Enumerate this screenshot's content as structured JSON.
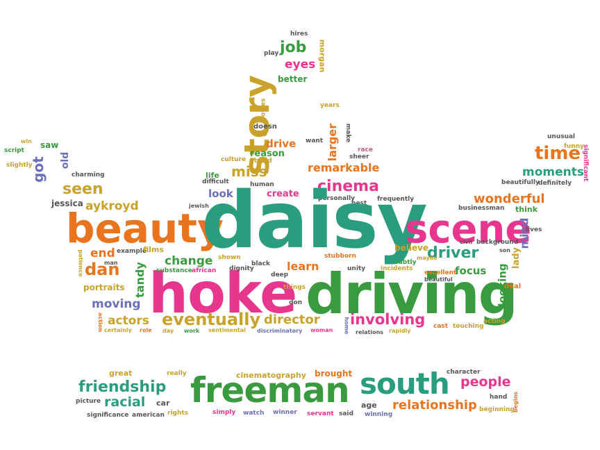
{
  "words": {
    "daisy": "daisy",
    "hoke": "hoke",
    "driving": "driving",
    "freeman": "freeman",
    "south": "south",
    "beauty": "beauty",
    "scene": "scene",
    "story": "story",
    "friendship": "friendship",
    "eventually": "eventually",
    "involving": "involving",
    "driver": "driver",
    "time": "time",
    "cinema": "cinema",
    "miss": "miss",
    "remarkable": "remarkable",
    "seen": "seen",
    "aykroyd": "aykroyd",
    "dan": "dan",
    "tandy": "tandy",
    "job": "job",
    "eyes": "eyes",
    "better": "better",
    "moments": "moments",
    "wonderful": "wonderful",
    "got": "got",
    "saw": "saw",
    "old": "old",
    "people": "people",
    "racial": "racial",
    "relationship": "relationship",
    "director": "director",
    "actors": "actors",
    "moving": "moving",
    "change": "change",
    "learn": "learn",
    "look": "look",
    "create": "create",
    "drive": "drive",
    "reason": "reason",
    "larger": "larger",
    "looking": "looking",
    "lady": "lady",
    "mind": "mind",
    "focus": "focus",
    "believe": "believe",
    "end": "end",
    "portraits": "portraits",
    "doesn": "doesn",
    "life": "life",
    "films": "films",
    "think": "think",
    "jessica": "jessica",
    "charming": "charming",
    "script": "script",
    "slightly": "slightly",
    "win": "win",
    "hires": "hires",
    "play": "play",
    "morgan": "morgan",
    "years": "years",
    "make": "make",
    "want": "want",
    "race": "race",
    "sheer": "sheer",
    "movies": "movies",
    "way": "way",
    "culture": "culture",
    "build": "build",
    "difficult": "difficult",
    "human": "human",
    "personally": "personally",
    "best": "best",
    "frequently": "frequently",
    "jewish": "jewish",
    "unusual": "unusual",
    "funny": "funny",
    "significant": "significant",
    "beautifully": "beautifully",
    "definitely": "definitely",
    "businessman": "businessman",
    "lives": "lives",
    "civil": "civil",
    "background": "background",
    "son": "son",
    "excellent": "excellent",
    "beautiful": "beautiful",
    "maybe": "maybe",
    "deal": "deal",
    "acting": "acting",
    "touching": "touching",
    "cast": "cast",
    "subtly": "subtly",
    "incidents": "incidents",
    "unity": "unity",
    "stubborn": "stubborn",
    "black": "black",
    "deep": "deep",
    "things": "things",
    "don": "don",
    "dignity": "dignity",
    "shown": "shown",
    "african": "african",
    "substance": "substance",
    "example": "example",
    "man": "man",
    "patience": "patience",
    "action": "action",
    "certainly": "certainly",
    "role": "role",
    "day": "day",
    "work": "work",
    "sentimental": "sentimental",
    "discriminatory": "discriminatory",
    "woman": "woman",
    "home": "home",
    "relations": "relations",
    "rapidly": "rapidly",
    "great": "great",
    "really": "really",
    "cinematography": "cinematography",
    "brought": "brought",
    "character": "character",
    "picture": "picture",
    "car": "car",
    "significance": "significance",
    "american": "american",
    "rights": "rights",
    "simply": "simply",
    "watch": "watch",
    "winner": "winner",
    "servant": "servant",
    "said": "said",
    "winning": "winning",
    "age": "age",
    "hand": "hand",
    "begins": "begins",
    "beginning": "beginning"
  }
}
